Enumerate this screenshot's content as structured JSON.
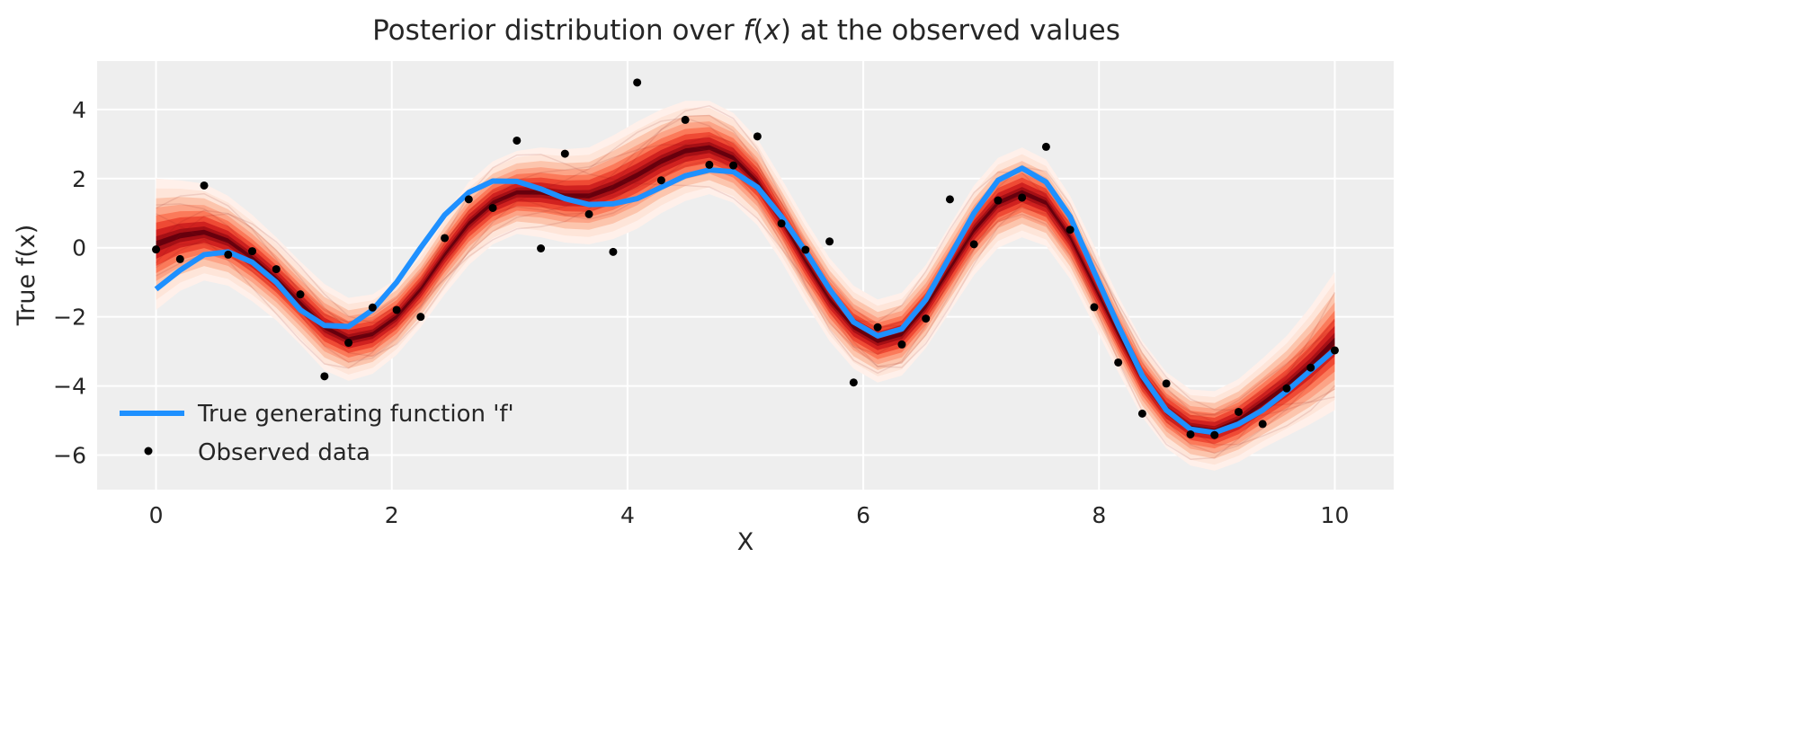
{
  "chart_data": {
    "type": "line",
    "title": "Posterior distribution over f(x) at the observed values",
    "title_parts": {
      "pre": "Posterior distribution over ",
      "f": "f",
      "open": "(",
      "x": "x",
      "close": ") at the observed values"
    },
    "xlabel": "X",
    "ylabel": "True f(x)",
    "xlim": [
      -0.5,
      10.5
    ],
    "ylim": [
      -7,
      5.4
    ],
    "xticks": [
      0,
      2,
      4,
      6,
      8,
      10
    ],
    "xtick_labels": [
      "0",
      "2",
      "4",
      "6",
      "8",
      "10"
    ],
    "yticks": [
      4,
      2,
      0,
      -2,
      -4,
      -6
    ],
    "ytick_labels": [
      "4",
      "2",
      "0",
      "−2",
      "−4",
      "−6"
    ],
    "grid": true,
    "legend_placement": "lower-left",
    "colors": {
      "background": "#eeeeee",
      "grid": "#ffffff",
      "true_f": "#1e90ff",
      "observed": "#000000",
      "posterior_dark": "#67000d",
      "posterior_light": "#fee5d9"
    },
    "x": [
      0,
      0.204,
      0.408,
      0.612,
      0.816,
      1.02,
      1.224,
      1.429,
      1.633,
      1.837,
      2.041,
      2.245,
      2.449,
      2.653,
      2.857,
      3.061,
      3.265,
      3.469,
      3.673,
      3.878,
      4.082,
      4.286,
      4.49,
      4.694,
      4.898,
      5.102,
      5.306,
      5.51,
      5.714,
      5.918,
      6.122,
      6.327,
      6.531,
      6.735,
      6.939,
      7.143,
      7.347,
      7.551,
      7.755,
      7.959,
      8.163,
      8.367,
      8.571,
      8.776,
      8.98,
      9.184,
      9.388,
      9.592,
      9.796,
      10
    ],
    "series": [
      {
        "name": "True generating function 'f'",
        "kind": "line",
        "values": [
          -1.2,
          -0.65,
          -0.2,
          -0.12,
          -0.42,
          -1.0,
          -1.8,
          -2.25,
          -2.28,
          -1.8,
          -1.0,
          0.0,
          0.95,
          1.6,
          1.93,
          1.92,
          1.7,
          1.42,
          1.25,
          1.27,
          1.42,
          1.75,
          2.08,
          2.25,
          2.2,
          1.75,
          0.9,
          -0.1,
          -1.2,
          -2.15,
          -2.55,
          -2.35,
          -1.5,
          -0.25,
          1.0,
          1.95,
          2.3,
          1.9,
          0.9,
          -0.7,
          -2.25,
          -3.7,
          -4.7,
          -5.25,
          -5.35,
          -5.1,
          -4.7,
          -4.15,
          -3.55,
          -2.95
        ]
      },
      {
        "name": "Observed data",
        "kind": "scatter",
        "values": [
          -0.05,
          -0.33,
          1.8,
          -0.2,
          -0.1,
          -0.62,
          -1.35,
          -3.72,
          -2.75,
          -1.73,
          -1.8,
          -2.0,
          0.28,
          1.4,
          1.15,
          3.1,
          -0.02,
          2.72,
          0.97,
          -0.12,
          4.78,
          1.95,
          3.7,
          2.4,
          2.38,
          3.22,
          0.7,
          -0.06,
          0.18,
          -3.9,
          -2.3,
          -2.8,
          -2.05,
          1.4,
          0.1,
          1.37,
          1.45,
          2.92,
          0.52,
          -1.72,
          -3.32,
          -4.8,
          -3.93,
          -5.4,
          -5.42,
          -4.75,
          -5.1,
          -4.07,
          -3.47,
          -2.97
        ]
      },
      {
        "kind": "posterior_band",
        "median": [
          0.1,
          0.35,
          0.45,
          0.2,
          -0.3,
          -0.9,
          -1.6,
          -2.3,
          -2.65,
          -2.5,
          -2.0,
          -1.2,
          -0.2,
          0.7,
          1.3,
          1.6,
          1.6,
          1.5,
          1.5,
          1.75,
          2.1,
          2.5,
          2.8,
          2.9,
          2.6,
          1.9,
          0.8,
          -0.4,
          -1.5,
          -2.3,
          -2.7,
          -2.5,
          -1.7,
          -0.6,
          0.5,
          1.3,
          1.6,
          1.3,
          0.3,
          -1.1,
          -2.5,
          -3.8,
          -4.7,
          -5.2,
          -5.3,
          -5.0,
          -4.5,
          -4.0,
          -3.4,
          -2.7
        ],
        "spread": [
          1.9,
          1.6,
          1.4,
          1.3,
          1.25,
          1.2,
          1.2,
          1.25,
          1.2,
          1.15,
          1.1,
          1.1,
          1.15,
          1.2,
          1.2,
          1.2,
          1.3,
          1.35,
          1.4,
          1.5,
          1.55,
          1.5,
          1.45,
          1.35,
          1.3,
          1.25,
          1.2,
          1.2,
          1.2,
          1.2,
          1.2,
          1.2,
          1.2,
          1.25,
          1.3,
          1.3,
          1.3,
          1.25,
          1.2,
          1.15,
          1.1,
          1.1,
          1.1,
          1.1,
          1.15,
          1.2,
          1.3,
          1.45,
          1.7,
          2.0
        ]
      }
    ]
  }
}
